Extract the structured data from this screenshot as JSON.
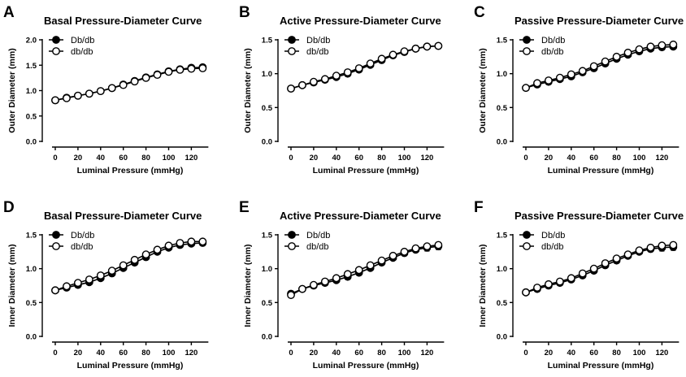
{
  "chart_data": [
    {
      "panel": "A",
      "type": "line",
      "title": "Basal Pressure-Diameter Curve",
      "xlabel": "Luminal Pressure (mmHg)",
      "ylabel": "Outer Diameter (mm)",
      "xlim": [
        0,
        130
      ],
      "ylim": [
        0.0,
        2.0
      ],
      "xticks": [
        0,
        20,
        40,
        60,
        80,
        100,
        120
      ],
      "yticks": [
        0.0,
        0.5,
        1.0,
        1.5,
        2.0
      ],
      "x": [
        0,
        10,
        20,
        30,
        40,
        50,
        60,
        70,
        80,
        90,
        100,
        110,
        120,
        130
      ],
      "series": [
        {
          "name": "Db/db",
          "marker": "filled",
          "values": [
            0.81,
            0.86,
            0.9,
            0.94,
            0.99,
            1.05,
            1.12,
            1.19,
            1.26,
            1.32,
            1.38,
            1.42,
            1.45,
            1.46
          ],
          "errors": [
            0.01,
            0.01,
            0.01,
            0.01,
            0.01,
            0.01,
            0.01,
            0.01,
            0.01,
            0.01,
            0.02,
            0.02,
            0.03,
            0.03
          ]
        },
        {
          "name": "db/db",
          "marker": "open",
          "values": [
            0.81,
            0.85,
            0.9,
            0.94,
            0.99,
            1.05,
            1.11,
            1.18,
            1.25,
            1.31,
            1.37,
            1.41,
            1.43,
            1.44
          ],
          "errors": [
            0.01,
            0.01,
            0.01,
            0.01,
            0.01,
            0.01,
            0.01,
            0.01,
            0.01,
            0.01,
            0.02,
            0.02,
            0.02,
            0.02
          ]
        }
      ]
    },
    {
      "panel": "B",
      "type": "line",
      "title": "Active Pressure-Diameter Curve",
      "xlabel": "Luminal Pressure (mmHg)",
      "ylabel": "Outer Diameter (mm)",
      "xlim": [
        0,
        130
      ],
      "ylim": [
        0.0,
        1.5
      ],
      "xticks": [
        0,
        20,
        40,
        60,
        80,
        100,
        120
      ],
      "yticks": [
        0.0,
        0.5,
        1.0,
        1.5
      ],
      "x": [
        0,
        10,
        20,
        30,
        40,
        50,
        60,
        70,
        80,
        90,
        100,
        110,
        120,
        130
      ],
      "series": [
        {
          "name": "Db/db",
          "marker": "filled",
          "values": [
            0.78,
            0.83,
            0.87,
            0.91,
            0.95,
            1.0,
            1.06,
            1.13,
            1.2,
            1.27,
            1.32,
            1.37,
            1.4,
            1.41
          ],
          "errors": [
            0.01,
            0.01,
            0.01,
            0.01,
            0.01,
            0.01,
            0.01,
            0.01,
            0.01,
            0.01,
            0.01,
            0.01,
            0.02,
            0.02
          ]
        },
        {
          "name": "db/db",
          "marker": "open",
          "values": [
            0.78,
            0.83,
            0.88,
            0.92,
            0.97,
            1.02,
            1.08,
            1.15,
            1.22,
            1.28,
            1.33,
            1.37,
            1.4,
            1.41
          ],
          "errors": [
            0.01,
            0.01,
            0.01,
            0.01,
            0.01,
            0.01,
            0.01,
            0.01,
            0.01,
            0.01,
            0.01,
            0.01,
            0.01,
            0.01
          ]
        }
      ]
    },
    {
      "panel": "C",
      "type": "line",
      "title": "Passive Pressure-Diameter Curve",
      "xlabel": "Luminal Pressure (mmHg)",
      "ylabel": "Outer Diameter (mm)",
      "xlim": [
        0,
        130
      ],
      "ylim": [
        0.0,
        1.5
      ],
      "xticks": [
        0,
        20,
        40,
        60,
        80,
        100,
        120
      ],
      "yticks": [
        0.0,
        0.5,
        1.0,
        1.5
      ],
      "x": [
        0,
        10,
        20,
        30,
        40,
        50,
        60,
        70,
        80,
        90,
        100,
        110,
        120,
        130
      ],
      "series": [
        {
          "name": "Db/db",
          "marker": "filled",
          "values": [
            0.79,
            0.84,
            0.88,
            0.92,
            0.96,
            1.02,
            1.08,
            1.15,
            1.22,
            1.28,
            1.33,
            1.37,
            1.39,
            1.4
          ],
          "errors": [
            0.01,
            0.01,
            0.01,
            0.01,
            0.01,
            0.01,
            0.01,
            0.01,
            0.02,
            0.02,
            0.02,
            0.03,
            0.04,
            0.04
          ]
        },
        {
          "name": "db/db",
          "marker": "open",
          "values": [
            0.79,
            0.86,
            0.9,
            0.94,
            0.99,
            1.04,
            1.11,
            1.18,
            1.25,
            1.31,
            1.36,
            1.4,
            1.42,
            1.43
          ],
          "errors": [
            0.01,
            0.01,
            0.01,
            0.01,
            0.01,
            0.01,
            0.01,
            0.01,
            0.01,
            0.01,
            0.02,
            0.02,
            0.02,
            0.02
          ]
        }
      ]
    },
    {
      "panel": "D",
      "type": "line",
      "title": "Basal Pressure-Diameter Curve",
      "xlabel": "Luminal Pressure (mmHg)",
      "ylabel": "Inner Diameter (mm)",
      "xlim": [
        0,
        130
      ],
      "ylim": [
        0.0,
        1.5
      ],
      "xticks": [
        0,
        20,
        40,
        60,
        80,
        100,
        120
      ],
      "yticks": [
        0.0,
        0.5,
        1.0,
        1.5
      ],
      "x": [
        0,
        10,
        20,
        30,
        40,
        50,
        60,
        70,
        80,
        90,
        100,
        110,
        120,
        130
      ],
      "series": [
        {
          "name": "Db/db",
          "marker": "filled",
          "values": [
            0.68,
            0.72,
            0.76,
            0.8,
            0.86,
            0.93,
            1.01,
            1.09,
            1.17,
            1.25,
            1.31,
            1.35,
            1.37,
            1.38
          ],
          "errors": [
            0.01,
            0.01,
            0.01,
            0.01,
            0.01,
            0.01,
            0.01,
            0.01,
            0.02,
            0.02,
            0.02,
            0.03,
            0.03,
            0.03
          ]
        },
        {
          "name": "db/db",
          "marker": "open",
          "values": [
            0.68,
            0.74,
            0.79,
            0.84,
            0.9,
            0.97,
            1.05,
            1.13,
            1.21,
            1.28,
            1.34,
            1.38,
            1.4,
            1.4
          ],
          "errors": [
            0.01,
            0.01,
            0.01,
            0.01,
            0.01,
            0.01,
            0.01,
            0.01,
            0.01,
            0.01,
            0.01,
            0.02,
            0.02,
            0.02
          ]
        }
      ]
    },
    {
      "panel": "E",
      "type": "line",
      "title": "Active Pressure-Diameter Curve",
      "xlabel": "Luminal Pressure (mmHg)",
      "ylabel": "Inner Diameter (mm)",
      "xlim": [
        0,
        130
      ],
      "ylim": [
        0.0,
        1.5
      ],
      "xticks": [
        0,
        20,
        40,
        60,
        80,
        100,
        120
      ],
      "yticks": [
        0.0,
        0.5,
        1.0,
        1.5
      ],
      "x": [
        0,
        10,
        20,
        30,
        40,
        50,
        60,
        70,
        80,
        90,
        100,
        110,
        120,
        130
      ],
      "series": [
        {
          "name": "Db/db",
          "marker": "filled",
          "values": [
            0.63,
            0.7,
            0.75,
            0.79,
            0.83,
            0.88,
            0.94,
            1.01,
            1.09,
            1.16,
            1.23,
            1.28,
            1.31,
            1.33
          ],
          "errors": [
            0.01,
            0.01,
            0.01,
            0.01,
            0.01,
            0.01,
            0.01,
            0.01,
            0.02,
            0.02,
            0.03,
            0.04,
            0.05,
            0.05
          ]
        },
        {
          "name": "db/db",
          "marker": "open",
          "values": [
            0.61,
            0.7,
            0.76,
            0.81,
            0.86,
            0.92,
            0.98,
            1.05,
            1.12,
            1.19,
            1.25,
            1.3,
            1.33,
            1.35
          ],
          "errors": [
            0.01,
            0.01,
            0.01,
            0.01,
            0.01,
            0.01,
            0.01,
            0.01,
            0.01,
            0.01,
            0.02,
            0.02,
            0.02,
            0.02
          ]
        }
      ]
    },
    {
      "panel": "F",
      "type": "line",
      "title": "Passive Pressure-Diameter Curve",
      "xlabel": "Luminal Pressure (mmHg)",
      "ylabel": "Inner Diameter (mm)",
      "xlim": [
        0,
        130
      ],
      "ylim": [
        0.0,
        1.5
      ],
      "xticks": [
        0,
        20,
        40,
        60,
        80,
        100,
        120
      ],
      "yticks": [
        0.0,
        0.5,
        1.0,
        1.5
      ],
      "x": [
        0,
        10,
        20,
        30,
        40,
        50,
        60,
        70,
        80,
        90,
        100,
        110,
        120,
        130
      ],
      "series": [
        {
          "name": "Db/db",
          "marker": "filled",
          "values": [
            0.65,
            0.7,
            0.75,
            0.79,
            0.84,
            0.9,
            0.97,
            1.05,
            1.12,
            1.19,
            1.25,
            1.29,
            1.31,
            1.32
          ],
          "errors": [
            0.01,
            0.01,
            0.01,
            0.01,
            0.01,
            0.01,
            0.01,
            0.01,
            0.02,
            0.02,
            0.03,
            0.04,
            0.05,
            0.05
          ]
        },
        {
          "name": "db/db",
          "marker": "open",
          "values": [
            0.65,
            0.72,
            0.77,
            0.81,
            0.86,
            0.93,
            1.0,
            1.08,
            1.15,
            1.21,
            1.27,
            1.31,
            1.34,
            1.35
          ],
          "errors": [
            0.01,
            0.01,
            0.01,
            0.01,
            0.01,
            0.01,
            0.01,
            0.01,
            0.01,
            0.01,
            0.02,
            0.02,
            0.02,
            0.02
          ]
        }
      ]
    }
  ]
}
